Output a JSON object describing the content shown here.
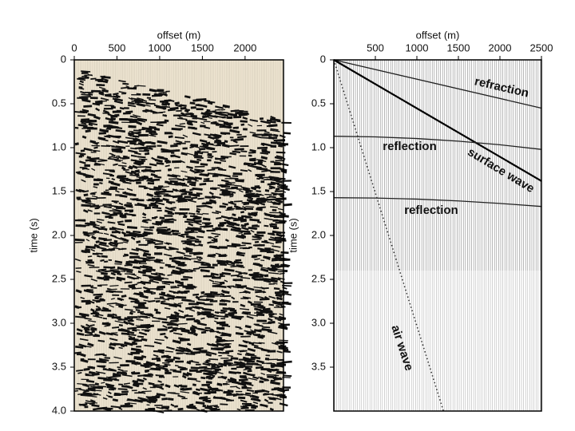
{
  "chart_data": [
    {
      "type": "seismogram",
      "x_label": "offset (m)",
      "y_label": "time (s)",
      "xlim": [
        0,
        2450
      ],
      "xticks": [
        0,
        500,
        1000,
        1500,
        2000
      ],
      "ylim": [
        0,
        4
      ],
      "yticks": [
        0,
        0.5,
        {
          "value": 1,
          "label": "1.0"
        },
        1.5,
        {
          "value": 2,
          "label": "2.0"
        },
        2.5,
        {
          "value": 3,
          "label": "3.0"
        },
        3.5,
        {
          "value": 4,
          "label": "4.0"
        }
      ]
    },
    {
      "type": "events",
      "x_label": "offset (m)",
      "y_label": "time (s)",
      "xlim": [
        0,
        2500
      ],
      "xticks": [
        500,
        1000,
        1500,
        2000,
        2500
      ],
      "ylim": [
        0,
        4
      ],
      "yticks": [
        0,
        0.5,
        {
          "value": 1,
          "label": "1.0"
        },
        1.5,
        {
          "value": 2,
          "label": "2.0"
        },
        2.5,
        {
          "value": 3,
          "label": "3.0"
        },
        3.5
      ],
      "series": [
        {
          "name": "refraction",
          "color": "#222222",
          "x": [
            0,
            2500
          ],
          "values": [
            0,
            0.55
          ]
        },
        {
          "name": "surface wave",
          "color": "#000000",
          "x": [
            0,
            2500
          ],
          "values": [
            0,
            1.38
          ]
        },
        {
          "name": "reflection",
          "color": "#222222",
          "x": [
            0,
            500,
            1000,
            1500,
            2000,
            2500
          ],
          "values": [
            0.87,
            0.877,
            0.896,
            0.926,
            0.967,
            1.02
          ]
        },
        {
          "name": "reflection",
          "color": "#222222",
          "x": [
            0,
            500,
            1000,
            1500,
            2000,
            2500
          ],
          "values": [
            1.57,
            1.574,
            1.586,
            1.607,
            1.635,
            1.67
          ]
        },
        {
          "name": "air wave",
          "color": "#333333",
          "x": [
            0,
            1320
          ],
          "values": [
            0,
            4
          ]
        }
      ]
    }
  ]
}
